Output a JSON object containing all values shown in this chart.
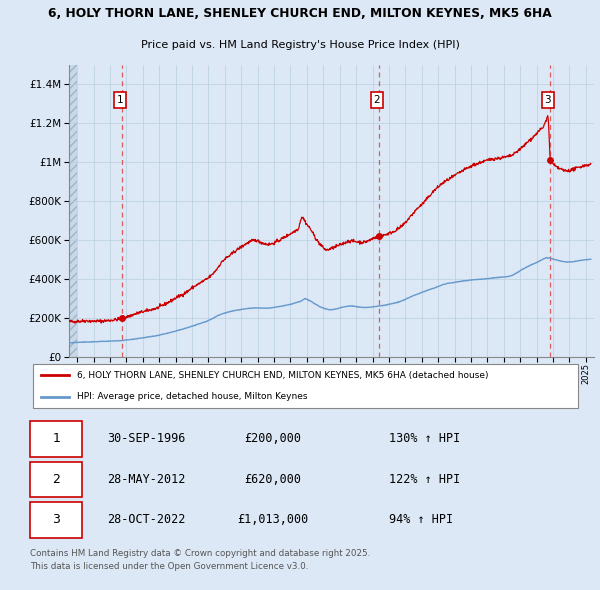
{
  "title_line1": "6, HOLY THORN LANE, SHENLEY CHURCH END, MILTON KEYNES, MK5 6HA",
  "title_line2": "Price paid vs. HM Land Registry's House Price Index (HPI)",
  "red_label": "6, HOLY THORN LANE, SHENLEY CHURCH END, MILTON KEYNES, MK5 6HA (detached house)",
  "blue_label": "HPI: Average price, detached house, Milton Keynes",
  "transactions": [
    {
      "num": 1,
      "date": "30-SEP-1996",
      "price": 200000,
      "hpi_pct": "130% ↑ HPI",
      "year": 1996.75
    },
    {
      "num": 2,
      "date": "28-MAY-2012",
      "price": 620000,
      "hpi_pct": "122% ↑ HPI",
      "year": 2012.41
    },
    {
      "num": 3,
      "date": "28-OCT-2022",
      "price": 1013000,
      "hpi_pct": "94% ↑ HPI",
      "year": 2022.83
    }
  ],
  "footer": "Contains HM Land Registry data © Crown copyright and database right 2025.\nThis data is licensed under the Open Government Licence v3.0.",
  "ylim": [
    0,
    1500000
  ],
  "yticks": [
    0,
    200000,
    400000,
    600000,
    800000,
    1000000,
    1200000,
    1400000
  ],
  "xlim_start": 1993.5,
  "xlim_end": 2025.5,
  "background_color": "#dce8f5",
  "plot_bg": "#dce8f5",
  "red_color": "#cc0000",
  "blue_color": "#6699cc",
  "dashed_line_color": "#dd4444",
  "grid_color": "#b8cfe0",
  "hatch_color": "#b0bfcf",
  "num_box_color": "#cc0000",
  "num_text_color": "#000000"
}
